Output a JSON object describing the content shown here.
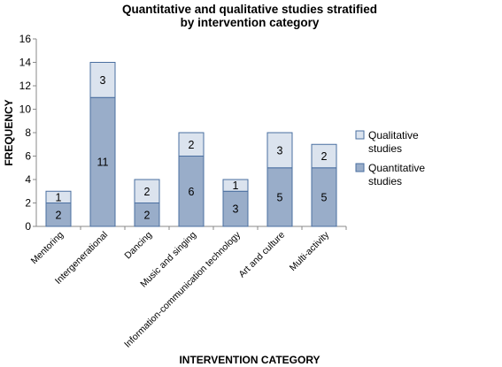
{
  "chart_data": {
    "type": "bar",
    "stacked": true,
    "title_lines": [
      "Quantitative and qualitative studies stratified",
      "by intervention category"
    ],
    "xlabel": "INTERVENTION CATEGORY",
    "ylabel": "FREQUENCY",
    "ylim": [
      0,
      16
    ],
    "yticks": [
      0,
      2,
      4,
      6,
      8,
      10,
      12,
      14,
      16
    ],
    "categories": [
      "Mentoring",
      "Intergenerational",
      "Dancing",
      "Music and singing",
      "Information-communication technology",
      "Art and culture",
      "Multi-activity"
    ],
    "series": [
      {
        "name": "Quantitative studies",
        "legend_lines": [
          "Quantitative",
          "studies"
        ],
        "color": "#99adc9",
        "values": [
          2,
          11,
          2,
          6,
          3,
          5,
          5
        ]
      },
      {
        "name": "Qualitative studies",
        "legend_lines": [
          "Qualitative",
          "studies"
        ],
        "color": "#dbe3ee",
        "values": [
          1,
          3,
          2,
          2,
          1,
          3,
          2
        ]
      }
    ],
    "bar_edge_color": "#4a6fa0",
    "grid": false,
    "legend_position": "right"
  }
}
